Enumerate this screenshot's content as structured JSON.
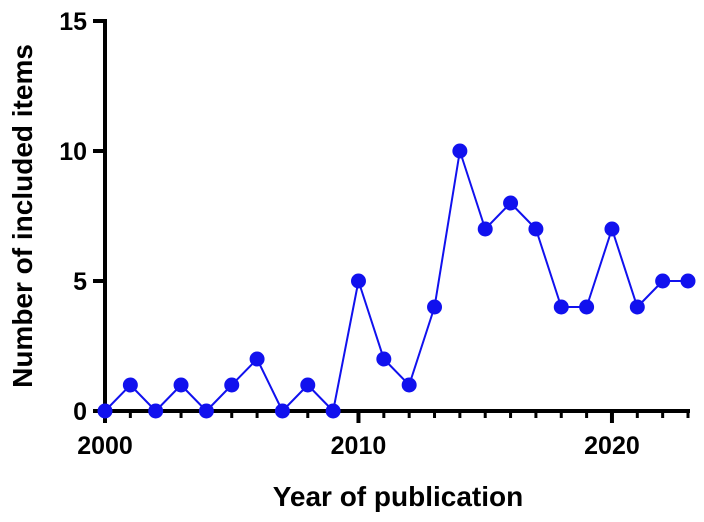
{
  "chart_data": {
    "type": "line",
    "title": "",
    "xlabel": "Year of publication",
    "ylabel": "Number of included items",
    "xlim": [
      2000,
      2023
    ],
    "ylim": [
      0,
      15
    ],
    "x_ticks": [
      2000,
      2010,
      2020
    ],
    "x_tick_labels": [
      "2000",
      "2010",
      "2020"
    ],
    "y_ticks": [
      0,
      5,
      10,
      15
    ],
    "y_tick_labels": [
      "0",
      "5",
      "10",
      "15"
    ],
    "grid": false,
    "legend": "none",
    "series": [
      {
        "color": "#1111ee",
        "marker": "circle",
        "x": [
          2000,
          2001,
          2002,
          2003,
          2004,
          2005,
          2006,
          2007,
          2008,
          2009,
          2010,
          2011,
          2012,
          2013,
          2014,
          2015,
          2016,
          2017,
          2018,
          2019,
          2020,
          2021,
          2022,
          2023
        ],
        "y": [
          0,
          1,
          0,
          1,
          0,
          1,
          2,
          0,
          1,
          0,
          5,
          2,
          1,
          4,
          10,
          7,
          8,
          7,
          4,
          4,
          7,
          4,
          5,
          5
        ]
      }
    ]
  }
}
